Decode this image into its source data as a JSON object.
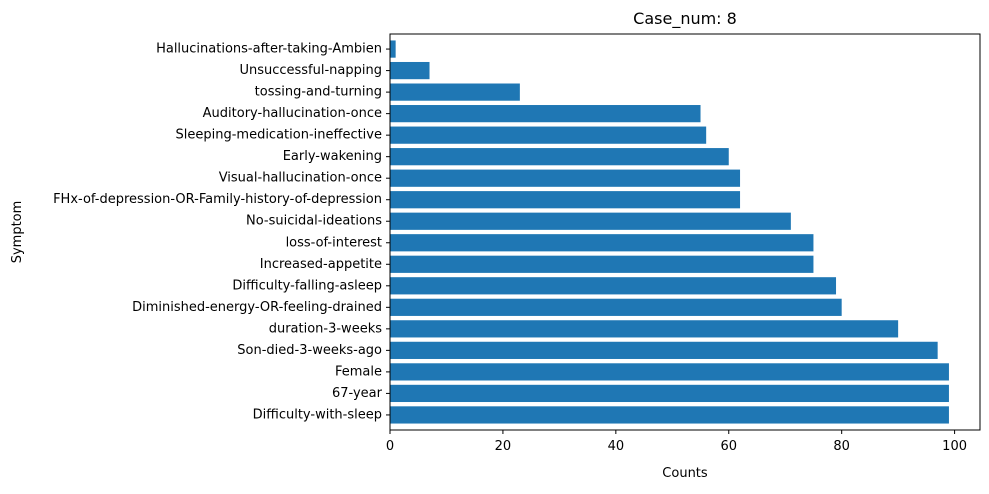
{
  "chart_data": {
    "type": "bar",
    "orientation": "horizontal",
    "title": "Case_num: 8",
    "xlabel": "Counts",
    "ylabel": "Symptom",
    "xlim": [
      0,
      104.5
    ],
    "xticks": [
      0,
      20,
      40,
      60,
      80,
      100
    ],
    "grid": false,
    "bar_color": "#1f77b4",
    "categories": [
      "Difficulty-with-sleep",
      "67-year",
      "Female",
      "Son-died-3-weeks-ago",
      "duration-3-weeks",
      "Diminished-energy-OR-feeling-drained",
      "Difficulty-falling-asleep",
      "Increased-appetite",
      "loss-of-interest",
      "No-suicidal-ideations",
      "FHx-of-depression-OR-Family-history-of-depression",
      "Visual-hallucination-once",
      "Early-wakening",
      "Sleeping-medication-ineffective",
      "Auditory-hallucination-once",
      "tossing-and-turning",
      "Unsuccessful-napping",
      "Hallucinations-after-taking-Ambien"
    ],
    "values": [
      99,
      99,
      99,
      97,
      90,
      80,
      79,
      75,
      75,
      71,
      62,
      62,
      60,
      56,
      55,
      23,
      7,
      1
    ]
  }
}
